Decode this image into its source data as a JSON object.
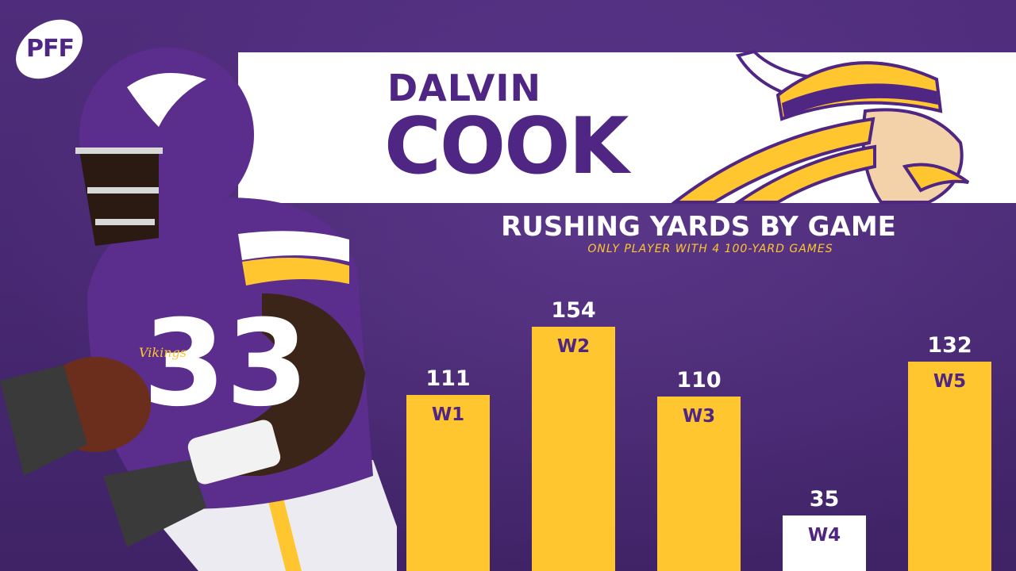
{
  "brand": {
    "logo_text": "PFF"
  },
  "player": {
    "first_name": "DALVIN",
    "last_name": "COOK",
    "jersey_number": "33",
    "jersey_text": "Vikings"
  },
  "colors": {
    "purple": "#4f2683",
    "gold": "#ffc62f",
    "white": "#ffffff"
  },
  "icons": {
    "logo": "pff-logo-icon",
    "mascot": "vikings-head-icon"
  },
  "chart_data": {
    "type": "bar",
    "title": "RUSHING YARDS BY GAME",
    "subtitle": "ONLY PLAYER WITH 4 100-YARD GAMES",
    "categories": [
      "W1",
      "W2",
      "W3",
      "W4",
      "W5"
    ],
    "values": [
      111,
      154,
      110,
      35,
      132
    ],
    "bar_colors": [
      "#ffc62f",
      "#ffc62f",
      "#ffc62f",
      "#ffffff",
      "#ffc62f"
    ],
    "ylim": [
      0,
      200
    ],
    "grid": false,
    "legend": "none"
  }
}
